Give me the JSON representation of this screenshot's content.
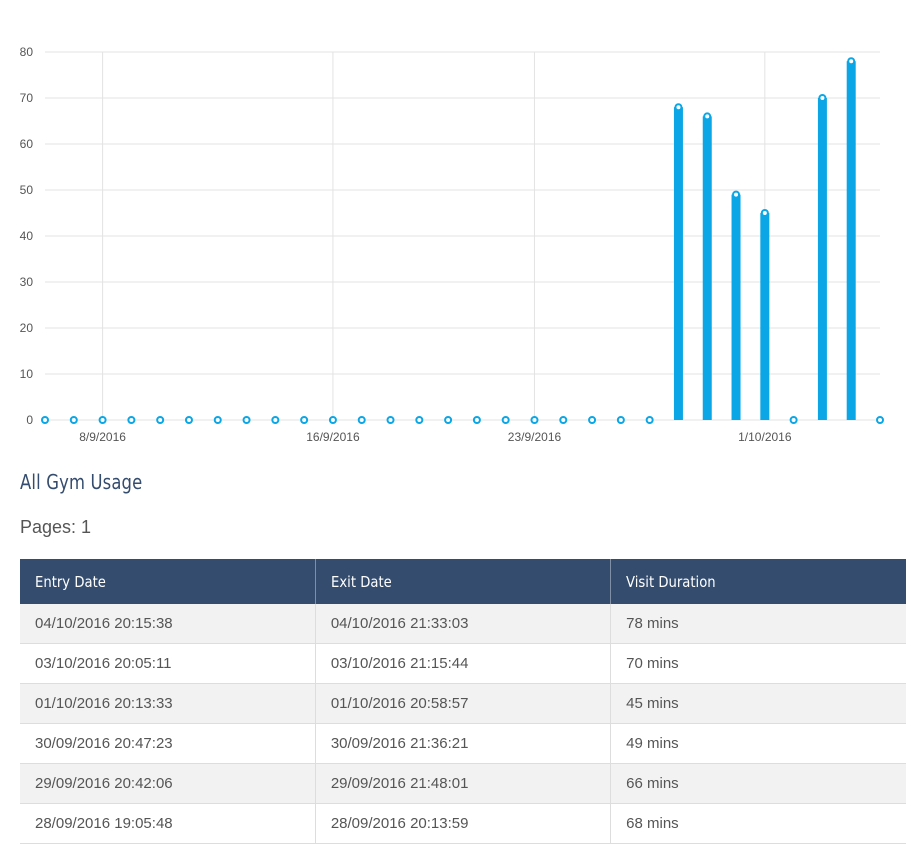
{
  "chart_data": {
    "type": "bar",
    "x": [
      "6/9/2016",
      "7/9/2016",
      "8/9/2016",
      "9/9/2016",
      "10/9/2016",
      "11/9/2016",
      "12/9/2016",
      "13/9/2016",
      "14/9/2016",
      "15/9/2016",
      "16/9/2016",
      "17/9/2016",
      "18/9/2016",
      "19/9/2016",
      "20/9/2016",
      "21/9/2016",
      "22/9/2016",
      "23/9/2016",
      "24/9/2016",
      "25/9/2016",
      "26/9/2016",
      "27/9/2016",
      "28/9/2016",
      "29/9/2016",
      "30/9/2016",
      "1/10/2016",
      "2/10/2016",
      "3/10/2016",
      "4/10/2016",
      "5/10/2016"
    ],
    "values": [
      0,
      0,
      0,
      0,
      0,
      0,
      0,
      0,
      0,
      0,
      0,
      0,
      0,
      0,
      0,
      0,
      0,
      0,
      0,
      0,
      0,
      0,
      68,
      66,
      49,
      45,
      0,
      70,
      78,
      0
    ],
    "x_tick_labels": [
      "8/9/2016",
      "16/9/2016",
      "23/9/2016",
      "1/10/2016"
    ],
    "y_ticks": [
      0,
      10,
      20,
      30,
      40,
      50,
      60,
      70,
      80
    ],
    "ylim": [
      0,
      80
    ],
    "grid": true,
    "legend": "none",
    "bar_color": "#0aa6e6",
    "title": "",
    "xlabel": "",
    "ylabel": ""
  },
  "section": {
    "title": "All Gym Usage",
    "pages_text": "Pages: 1"
  },
  "table": {
    "headers": [
      "Entry Date",
      "Exit Date",
      "Visit Duration"
    ],
    "rows": [
      [
        "04/10/2016 20:15:38",
        "04/10/2016 21:33:03",
        "78 mins"
      ],
      [
        "03/10/2016 20:05:11",
        "03/10/2016 21:15:44",
        "70 mins"
      ],
      [
        "01/10/2016 20:13:33",
        "01/10/2016 20:58:57",
        "45 mins"
      ],
      [
        "30/09/2016 20:47:23",
        "30/09/2016 21:36:21",
        "49 mins"
      ],
      [
        "29/09/2016 20:42:06",
        "29/09/2016 21:48:01",
        "66 mins"
      ],
      [
        "28/09/2016 19:05:48",
        "28/09/2016 20:13:59",
        "68 mins"
      ]
    ]
  },
  "colors": {
    "header_bg": "#344c6e",
    "bar": "#0aa6e6",
    "row_stripe": "#f2f2f2"
  }
}
